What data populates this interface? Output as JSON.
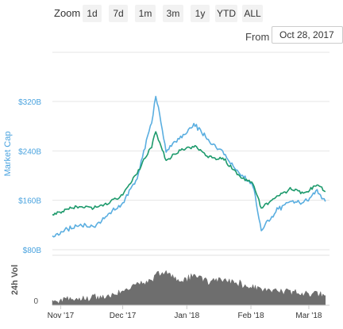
{
  "toolbar": {
    "zoom_label": "Zoom",
    "zoom_buttons": [
      "1d",
      "7d",
      "1m",
      "3m",
      "1y",
      "YTD",
      "ALL"
    ],
    "from_label": "From",
    "from_value": "Oct 28, 2017"
  },
  "colors": {
    "market_cap_line": "#5aaee0",
    "secondary_line": "#1d9a6c",
    "volume_area": "#6e6e6e",
    "axis_label": "#4aa3df"
  },
  "chart_data": [
    {
      "type": "line",
      "xlabel": "",
      "ylabel": "Market Cap",
      "x_tick_labels": [
        "Nov '17",
        "Dec '17",
        "Jan '18",
        "Feb '18",
        "Mar '18"
      ],
      "y_tick_labels": [
        "$80B",
        "$160B",
        "$240B",
        "$320B"
      ],
      "ylim": [
        80,
        320
      ],
      "grid": true,
      "x": [
        "Oct 28 '17",
        "Nov 3 '17",
        "Nov 10 '17",
        "Nov 17 '17",
        "Nov 24 '17",
        "Dec 1 '17",
        "Dec 8 '17",
        "Dec 15 '17",
        "Dec 17 '17",
        "Dec 22 '17",
        "Dec 29 '17",
        "Jan 5 '18",
        "Jan 12 '18",
        "Jan 19 '18",
        "Jan 26 '18",
        "Feb 2 '18",
        "Feb 6 '18",
        "Feb 13 '18",
        "Feb 20 '18",
        "Feb 27 '18",
        "Mar 5 '18",
        "Mar 9 '18"
      ],
      "series": [
        {
          "values": [
            100,
            112,
            120,
            117,
            138,
            155,
            198,
            288,
            330,
            240,
            262,
            282,
            256,
            236,
            205,
            185,
            112,
            142,
            160,
            157,
            175,
            158
          ]
        },
        {
          "values": [
            135,
            145,
            150,
            148,
            156,
            170,
            205,
            248,
            272,
            225,
            242,
            248,
            230,
            226,
            200,
            187,
            148,
            165,
            178,
            172,
            185,
            174
          ]
        }
      ]
    },
    {
      "type": "area",
      "xlabel": "",
      "ylabel": "24h Vol",
      "y_tick_labels": [
        "0"
      ],
      "ylim": [
        0,
        1
      ],
      "x": [
        "Oct 28 '17",
        "Nov 3 '17",
        "Nov 10 '17",
        "Nov 17 '17",
        "Nov 24 '17",
        "Dec 1 '17",
        "Dec 8 '17",
        "Dec 15 '17",
        "Dec 17 '17",
        "Dec 22 '17",
        "Dec 29 '17",
        "Jan 5 '18",
        "Jan 12 '18",
        "Jan 19 '18",
        "Jan 26 '18",
        "Feb 2 '18",
        "Feb 6 '18",
        "Feb 13 '18",
        "Feb 20 '18",
        "Feb 27 '18",
        "Mar 5 '18",
        "Mar 9 '18"
      ],
      "series": [
        {
          "values": [
            0.1,
            0.12,
            0.14,
            0.17,
            0.2,
            0.32,
            0.5,
            0.55,
            0.75,
            0.78,
            0.55,
            0.7,
            0.52,
            0.6,
            0.5,
            0.4,
            0.38,
            0.35,
            0.3,
            0.28,
            0.27,
            0.22
          ]
        }
      ]
    }
  ]
}
